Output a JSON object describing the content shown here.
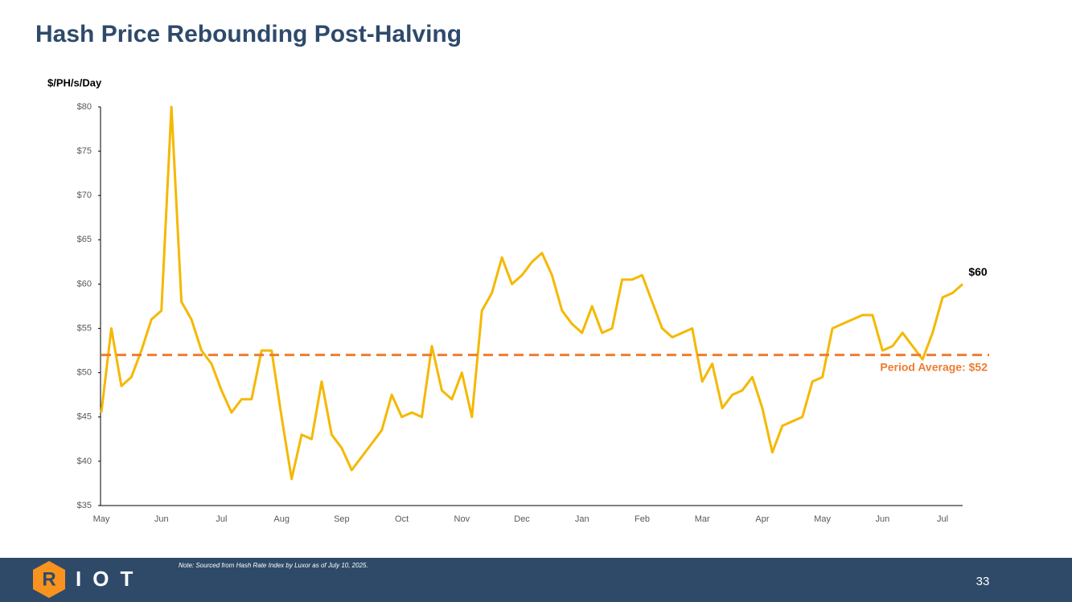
{
  "chart_data": {
    "type": "line",
    "title": "Hash Price Rebounding Post-Halving",
    "y_label": "$/PH/s/Day",
    "categories": [
      "May",
      null,
      null,
      null,
      null,
      null,
      "Jun",
      null,
      null,
      null,
      null,
      null,
      "Jul",
      null,
      null,
      null,
      null,
      null,
      "Aug",
      null,
      null,
      null,
      null,
      null,
      "Sep",
      null,
      null,
      null,
      null,
      null,
      "Oct",
      null,
      null,
      null,
      null,
      null,
      "Nov",
      null,
      null,
      null,
      null,
      null,
      "Dec",
      null,
      null,
      null,
      null,
      null,
      "Jan",
      null,
      null,
      null,
      null,
      null,
      "Feb",
      null,
      null,
      null,
      null,
      null,
      "Mar",
      null,
      null,
      null,
      null,
      null,
      "Apr",
      null,
      null,
      null,
      null,
      null,
      "May",
      null,
      null,
      null,
      null,
      null,
      "Jun",
      null,
      null,
      null,
      null,
      null,
      "Jul",
      null,
      null
    ],
    "series": [
      {
        "name": "Hash Price",
        "color": "#f5b800",
        "values": [
          45.5,
          55,
          48.5,
          49.5,
          52.5,
          56,
          57,
          80,
          58,
          56,
          52.5,
          51,
          48,
          45.5,
          47,
          47,
          52.5,
          52.5,
          45,
          38,
          43,
          42.5,
          49,
          43,
          41.5,
          39,
          40.5,
          42,
          43.5,
          47.5,
          45,
          45.5,
          45,
          53,
          48,
          47,
          50,
          45,
          57,
          59,
          63,
          60,
          61,
          62.5,
          63.5,
          61,
          57,
          55.5,
          54.5,
          57.5,
          54.5,
          55,
          60.5,
          60.5,
          61,
          58,
          55,
          54,
          54.5,
          55,
          49,
          51,
          46,
          47.5,
          48,
          49.5,
          46,
          41,
          44,
          44.5,
          45,
          49,
          49.5,
          55,
          55.5,
          56,
          56.5,
          56.5,
          52.5,
          53,
          54.5,
          53,
          51.5,
          54.5,
          58.5,
          59,
          60
        ]
      }
    ],
    "end_label": "$60",
    "average": {
      "value": 52,
      "label": "Period Average: $52",
      "color": "#ed7d31"
    },
    "ylim": [
      35,
      80
    ],
    "yticks": [
      {
        "value": 35,
        "label": "$35"
      },
      {
        "value": 40,
        "label": "$40"
      },
      {
        "value": 45,
        "label": "$45"
      },
      {
        "value": 50,
        "label": "$50"
      },
      {
        "value": 55,
        "label": "$55"
      },
      {
        "value": 60,
        "label": "$60"
      },
      {
        "value": 65,
        "label": "$65"
      },
      {
        "value": 70,
        "label": "$70"
      },
      {
        "value": 75,
        "label": "$75"
      },
      {
        "value": 80,
        "label": "$80"
      }
    ],
    "grid": false
  },
  "footer": {
    "note": "Note: Sourced from Hash Rate Index by Luxor as of July 10, 2025.",
    "page": "33",
    "logo_mark": "R",
    "logo_text": "IOT"
  }
}
